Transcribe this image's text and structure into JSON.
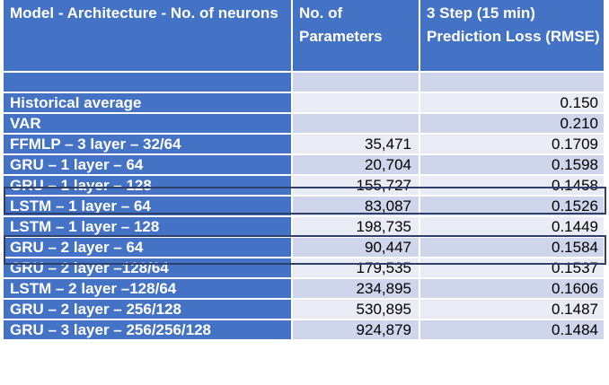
{
  "header": {
    "model": "Model - Architecture - No. of neurons",
    "params": "No. of Parameters",
    "loss": "3 Step (15 min) Prediction Loss (RMSE)"
  },
  "rows": [
    {
      "model": "Historical average",
      "params": "",
      "loss": "0.150"
    },
    {
      "model": "VAR",
      "params": "",
      "loss": "0.210"
    },
    {
      "model": "FFMLP – 3 layer – 32/64",
      "params": "35,471",
      "loss": "0.1709"
    },
    {
      "model": "GRU – 1 layer – 64",
      "params": "20,704",
      "loss": "0.1598"
    },
    {
      "model": "GRU – 1 layer – 128",
      "params": "155,727",
      "loss": "0.1458"
    },
    {
      "model": "LSTM – 1 layer – 64",
      "params": "83,087",
      "loss": "0.1526"
    },
    {
      "model": "LSTM – 1 layer – 128",
      "params": "198,735",
      "loss": "0.1449"
    },
    {
      "model": "GRU – 2 layer – 64",
      "params": "90,447",
      "loss": "0.1584"
    },
    {
      "model": "GRU – 2 layer –128/64",
      "params": "179,535",
      "loss": "0.1537"
    },
    {
      "model": "LSTM – 2 layer –128/64",
      "params": "234,895",
      "loss": "0.1606"
    },
    {
      "model": "GRU – 2 layer – 256/128",
      "params": "530,895",
      "loss": "0.1487"
    },
    {
      "model": "GRU – 3 layer – 256/256/128",
      "params": "924,879",
      "loss": "0.1484"
    }
  ],
  "colors": {
    "header_bg": "#4472c4",
    "band_dark": "#cfd5ea",
    "band_light": "#e9ebf5",
    "highlight_border": "#2f3f6b"
  }
}
